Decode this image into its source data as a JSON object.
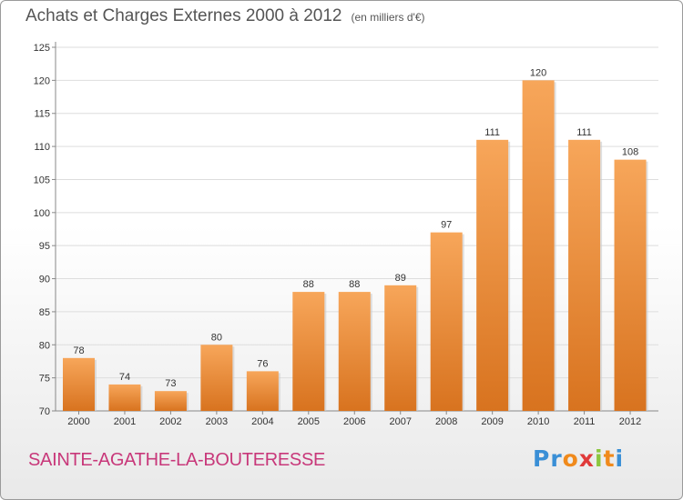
{
  "header": {
    "title": "Achats et Charges Externes 2000 à 2012",
    "subtitle": "(en milliers d'€)"
  },
  "footer": {
    "place": "SAINTE-AGATHE-LA-BOUTERESSE",
    "logo_letters": [
      "P",
      "r",
      "o",
      "x",
      "i",
      "t",
      "i"
    ],
    "logo_colors": [
      "#3a8fd6",
      "#3a8fd6",
      "#f08a1c",
      "#e03a3a",
      "#8cc63f",
      "#f08a1c",
      "#3a8fd6"
    ]
  },
  "colors": {
    "bar_top": "#f7a65a",
    "bar_bottom": "#d8731f",
    "grid": "#dddddd",
    "axis": "#888888"
  },
  "chart_data": {
    "type": "bar",
    "title": "Achats et Charges Externes 2000 à 2012",
    "subtitle": "(en milliers d'€)",
    "categories": [
      "2000",
      "2001",
      "2002",
      "2003",
      "2004",
      "2005",
      "2006",
      "2007",
      "2008",
      "2009",
      "2010",
      "2011",
      "2012"
    ],
    "values": [
      78,
      74,
      73,
      80,
      76,
      88,
      88,
      89,
      97,
      111,
      120,
      111,
      108
    ],
    "ylim": [
      70,
      125
    ],
    "yticks": [
      70,
      75,
      80,
      85,
      90,
      95,
      100,
      105,
      110,
      115,
      120,
      125
    ],
    "grid": true,
    "xlabel": "",
    "ylabel": ""
  }
}
